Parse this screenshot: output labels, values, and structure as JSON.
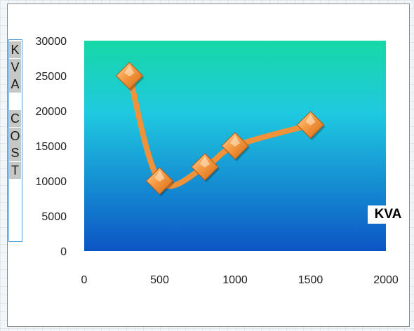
{
  "chart_data": {
    "type": "line",
    "title": "",
    "xlabel": "KVA",
    "ylabel": [
      "K",
      "V",
      "A",
      "",
      "C",
      "O",
      "S",
      "T"
    ],
    "x": [
      300,
      500,
      800,
      1000,
      1500
    ],
    "series": [
      {
        "values": [
          25000,
          10000,
          12000,
          15000,
          18000
        ]
      }
    ],
    "xlim": [
      0,
      2000
    ],
    "ylim": [
      0,
      30000
    ],
    "xticks": [
      "0",
      "500",
      "1000",
      "1500",
      "2000"
    ],
    "yticks": [
      "0",
      "5000",
      "10000",
      "15000",
      "20000",
      "25000",
      "30000"
    ],
    "grid": false,
    "legend": "none",
    "colors": {
      "line": "#f0923a",
      "marker_light": "#fcd5a5",
      "marker_dark": "#d46a12",
      "plot_top": "#16d8a6",
      "plot_middle": "#1fc8e0",
      "plot_bottom": "#0c55c4"
    }
  }
}
